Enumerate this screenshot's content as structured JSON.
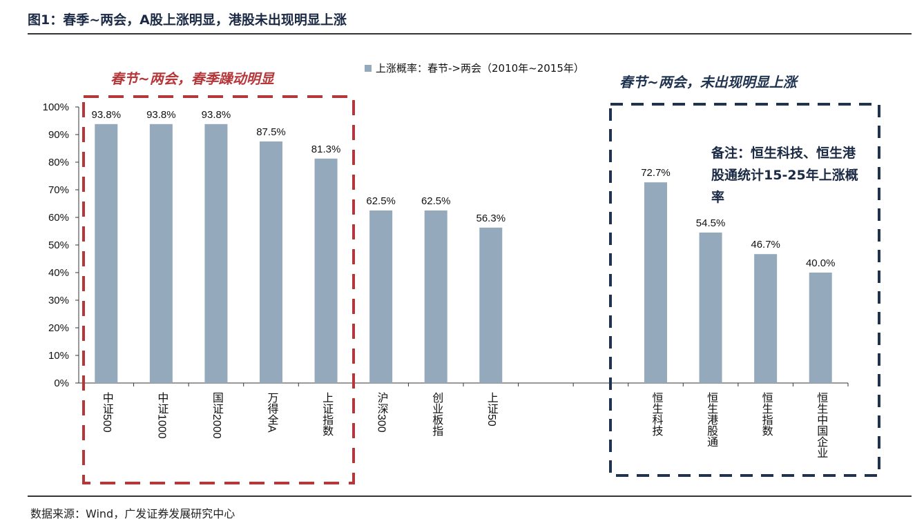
{
  "title": "图1：春季~两会，A股上涨明显，港股未出现明显上涨",
  "source": "数据来源：Wind，广发证券发展研究中心",
  "annotations": {
    "left": "春节~两会，春季躁动明显",
    "right": "春节~两会，未出现明显上涨",
    "note": "备注：恒生科技、恒生港股通统计15-25年上涨概率",
    "left_color": "#b5373a",
    "right_color": "#1f3350"
  },
  "chart_data": {
    "type": "bar",
    "categories": [
      "中证500",
      "中证1000",
      "国证2000",
      "万得全A",
      "上证指数",
      "沪深300",
      "创业板指",
      "上证50",
      "",
      "",
      "恒生科技",
      "恒生港股通",
      "恒生指数",
      "恒生中国企业"
    ],
    "series": [
      {
        "name": "上涨概率：春节->两会（2010年~2015年）",
        "values": [
          93.8,
          93.8,
          93.8,
          87.5,
          81.3,
          62.5,
          62.5,
          56.3,
          null,
          null,
          72.7,
          54.5,
          46.7,
          40.0
        ],
        "color": "#94a9bb"
      }
    ],
    "data_labels": [
      "93.8%",
      "93.8%",
      "93.8%",
      "87.5%",
      "81.3%",
      "62.5%",
      "62.5%",
      "56.3%",
      "",
      "",
      "72.7%",
      "54.5%",
      "46.7%",
      "40.0%"
    ],
    "yticks": [
      "0%",
      "10%",
      "20%",
      "30%",
      "40%",
      "50%",
      "60%",
      "70%",
      "80%",
      "90%",
      "100%"
    ],
    "ylim": [
      0,
      100
    ],
    "legend_position": "top",
    "grid": false
  }
}
